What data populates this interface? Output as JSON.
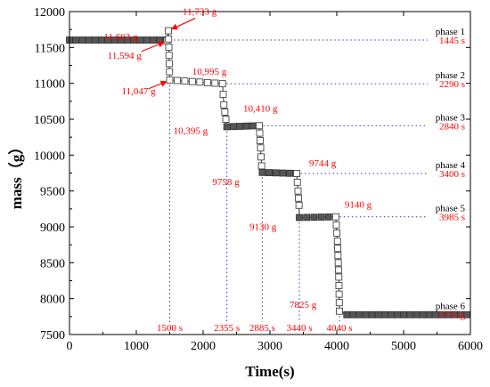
{
  "chart_data": {
    "type": "scatter",
    "title": "",
    "xlabel": "Time(s)",
    "ylabel": "mass（g）",
    "xlim": [
      0,
      6000
    ],
    "ylim": [
      7500,
      12000
    ],
    "xticks": [
      "0",
      "1000",
      "2000",
      "3000",
      "4000",
      "5000",
      "6000"
    ],
    "yticks": [
      "7500",
      "8000",
      "8500",
      "9000",
      "9500",
      "10000",
      "10500",
      "11000",
      "11500",
      "12000"
    ],
    "grid": false,
    "colors": {
      "marker_fill": "#555555",
      "open_marker": "#ffffff",
      "annotation": "#ff0000",
      "guide": "#3333cc"
    },
    "phases": [
      {
        "label": "phase 1",
        "time_label": "1445 s",
        "time": 1445,
        "level": 11603
      },
      {
        "label": "phase 2",
        "time_label": "2290 s",
        "time": 2290,
        "level": 10995
      },
      {
        "label": "phase 3",
        "time_label": "2840 s",
        "time": 2840,
        "level": 10410
      },
      {
        "label": "phase 4",
        "time_label": "3400 s",
        "time": 3400,
        "level": 9744
      },
      {
        "label": "phase 5",
        "time_label": "3985 s",
        "time": 3985,
        "level": 9140
      },
      {
        "label": "phase 6",
        "time_label": "7776 g",
        "time": null,
        "level": 7776
      }
    ],
    "drop_times": [
      {
        "label": "1500 s",
        "time": 1500
      },
      {
        "label": "2355 s",
        "time": 2355
      },
      {
        "label": "2885 s",
        "time": 2885
      },
      {
        "label": "3440 s",
        "time": 3440
      },
      {
        "label": "4040 s",
        "time": 4040
      }
    ],
    "mass_labels": [
      {
        "text": "11,603 g",
        "x": 1445,
        "y": 11603
      },
      {
        "text": "11,733 g",
        "x": 1480,
        "y": 11733
      },
      {
        "text": "11,594 g",
        "x": 1450,
        "y": 11594
      },
      {
        "text": "11,047 g",
        "x": 1500,
        "y": 11047
      },
      {
        "text": "10,995 g",
        "x": 2290,
        "y": 10995
      },
      {
        "text": "10,410 g",
        "x": 2840,
        "y": 10410
      },
      {
        "text": "10,395 g",
        "x": 2355,
        "y": 10395
      },
      {
        "text": "9744 g",
        "x": 3400,
        "y": 9744
      },
      {
        "text": "9758 g",
        "x": 2885,
        "y": 9758
      },
      {
        "text": "9140 g",
        "x": 3985,
        "y": 9140
      },
      {
        "text": "9130 g",
        "x": 3440,
        "y": 9130
      },
      {
        "text": "7825 g",
        "x": 4040,
        "y": 7825
      }
    ],
    "series": [
      {
        "x": [
          0,
          1445,
          1460,
          1480,
          1500,
          2290,
          2310,
          2340,
          2355,
          2840,
          2860,
          2875,
          2885,
          3400,
          3420,
          3435,
          3440,
          3985,
          4010,
          4030,
          4040,
          4150,
          5950
        ],
        "y": [
          11603,
          11603,
          11594,
          11733,
          11047,
          10995,
          10700,
          10500,
          10395,
          10410,
          10100,
          9850,
          9758,
          9744,
          9500,
          9300,
          9130,
          9140,
          8800,
          8300,
          7825,
          7776,
          7776
        ]
      }
    ]
  }
}
